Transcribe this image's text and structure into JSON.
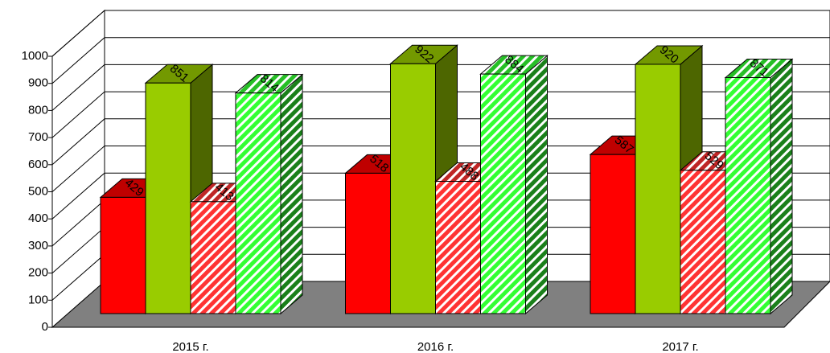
{
  "chart_data": {
    "type": "bar3d",
    "categories": [
      "2015 г.",
      "2016 г.",
      "2017 г."
    ],
    "series": [
      {
        "color": "#ff0000",
        "hatch": false,
        "values": [
          429,
          518,
          587
        ]
      },
      {
        "color": "#99cc00",
        "hatch": false,
        "values": [
          851,
          922,
          920
        ]
      },
      {
        "color": "#ff3333",
        "hatch": true,
        "values": [
          413,
          488,
          529
        ]
      },
      {
        "color": "#33ff33",
        "hatch": true,
        "values": [
          814,
          884,
          871
        ]
      }
    ],
    "ylim": [
      0,
      1000
    ],
    "yticks": [
      0,
      100,
      200,
      300,
      400,
      500,
      600,
      700,
      800,
      900,
      1000
    ],
    "grid": true,
    "floor_color": "#808080"
  }
}
